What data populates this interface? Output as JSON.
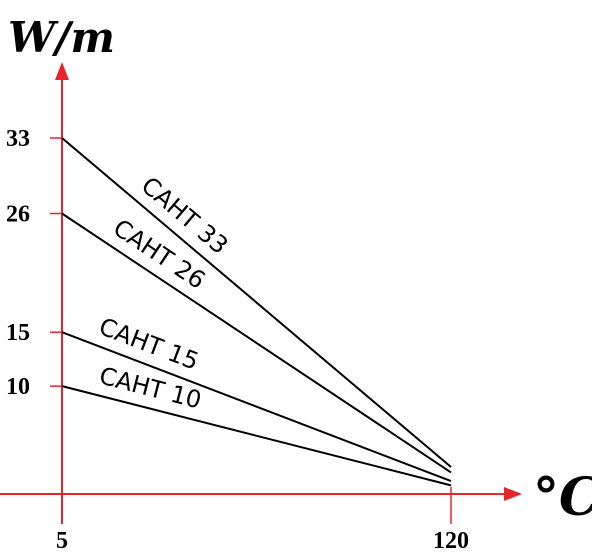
{
  "chart_data": {
    "type": "line",
    "ylabel": "W/m",
    "xlabel": "°C",
    "x_ticks": [
      "5",
      "120"
    ],
    "y_ticks": [
      "33",
      "26",
      "15",
      "10"
    ],
    "xlim": [
      5,
      120
    ],
    "ylim": [
      0,
      33
    ],
    "axis_color": "#e8232e",
    "line_color": "#000000",
    "series": [
      {
        "name": "CAHT 33",
        "x": [
          5,
          120
        ],
        "y": [
          33,
          2.5
        ]
      },
      {
        "name": "CAHT 26",
        "x": [
          5,
          120
        ],
        "y": [
          26,
          2.0
        ]
      },
      {
        "name": "CAHT 15",
        "x": [
          5,
          120
        ],
        "y": [
          15,
          1.2
        ]
      },
      {
        "name": "CAHT 10",
        "x": [
          5,
          120
        ],
        "y": [
          10,
          0.8
        ]
      }
    ]
  }
}
